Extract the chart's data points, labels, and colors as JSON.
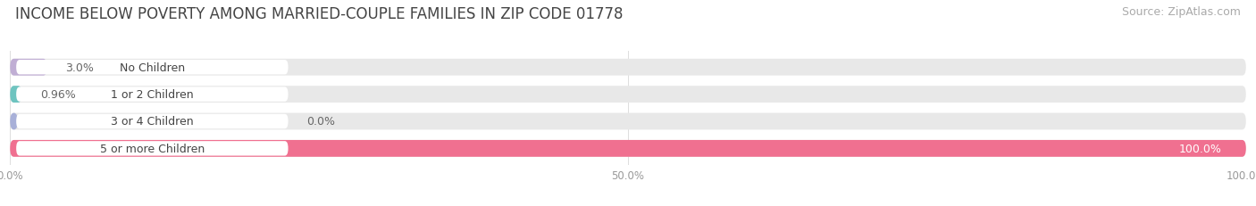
{
  "title": "INCOME BELOW POVERTY AMONG MARRIED-COUPLE FAMILIES IN ZIP CODE 01778",
  "source": "Source: ZipAtlas.com",
  "categories": [
    "No Children",
    "1 or 2 Children",
    "3 or 4 Children",
    "5 or more Children"
  ],
  "values": [
    3.0,
    0.96,
    0.0,
    100.0
  ],
  "bar_colors": [
    "#c0aed4",
    "#6ec4c0",
    "#a8b0d8",
    "#f07090"
  ],
  "value_labels": [
    "3.0%",
    "0.96%",
    "0.0%",
    "100.0%"
  ],
  "xlim": [
    0,
    100
  ],
  "xtick_labels": [
    "0.0%",
    "50.0%",
    "100.0%"
  ],
  "background_color": "#ffffff",
  "bar_bg_color": "#e8e8e8",
  "title_fontsize": 12,
  "source_fontsize": 9,
  "label_fontsize": 9,
  "value_fontsize": 9,
  "bar_height": 0.62
}
